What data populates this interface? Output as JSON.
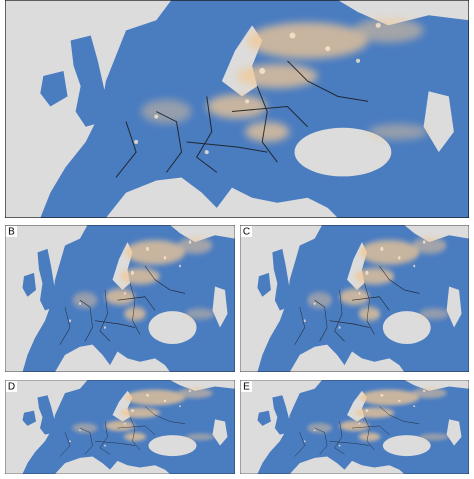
{
  "panel_labels": [
    "B",
    "C",
    "D",
    "E"
  ]
}
